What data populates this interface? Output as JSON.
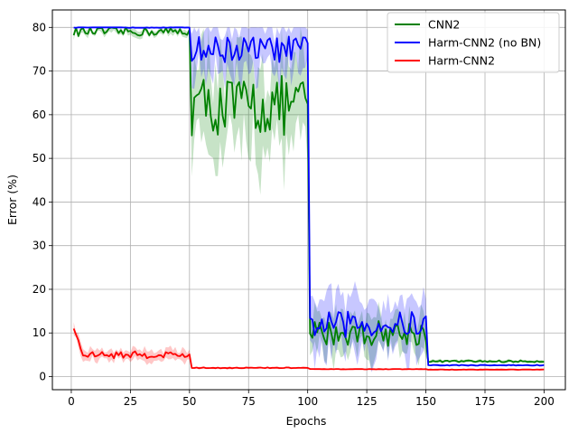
{
  "chart_data": {
    "type": "line",
    "title": "",
    "xlabel": "Epochs",
    "ylabel": "Error (%)",
    "xlim": [
      -8,
      209
    ],
    "ylim": [
      -3,
      84
    ],
    "xticks": [
      0,
      25,
      50,
      75,
      100,
      125,
      150,
      175,
      200
    ],
    "yticks": [
      0,
      10,
      20,
      30,
      40,
      50,
      60,
      70,
      80
    ],
    "grid": true,
    "legend_position": "top-right",
    "series": [
      {
        "name": "CNN2",
        "color": "#008000",
        "segments": [
          {
            "x_start": 1,
            "x_end": 50,
            "mean": 79,
            "noise": 1.0,
            "band": 0.8
          },
          {
            "x_start": 51,
            "x_end": 100,
            "mean": 62,
            "noise": 7,
            "band": 10
          },
          {
            "x_start": 101,
            "x_end": 150,
            "mean": 10,
            "noise": 3,
            "band": 4
          },
          {
            "x_start": 151,
            "x_end": 200,
            "mean": 3.5,
            "noise": 0.2,
            "band": 0.3
          }
        ]
      },
      {
        "name": "Harm-CNN2 (no BN)",
        "color": "#0000ff",
        "segments": [
          {
            "x_start": 1,
            "x_end": 50,
            "mean": 80,
            "noise": 0.1,
            "band": 0.2
          },
          {
            "x_start": 51,
            "x_end": 100,
            "mean": 75,
            "noise": 3,
            "band": 5
          },
          {
            "x_start": 101,
            "x_end": 150,
            "mean": 12,
            "noise": 3,
            "band": 6
          },
          {
            "x_start": 151,
            "x_end": 200,
            "mean": 2.6,
            "noise": 0.1,
            "band": 0.2
          }
        ]
      },
      {
        "name": "Harm-CNN2",
        "color": "#ff0000",
        "segments": [
          {
            "x_start": 1,
            "x_end": 50,
            "mean": 5,
            "noise": 0.8,
            "band": 1.2,
            "start_value": 11
          },
          {
            "x_start": 51,
            "x_end": 100,
            "mean": 2.0,
            "noise": 0.1,
            "band": 0.2
          },
          {
            "x_start": 101,
            "x_end": 150,
            "mean": 1.7,
            "noise": 0.05,
            "band": 0.1
          },
          {
            "x_start": 151,
            "x_end": 200,
            "mean": 1.6,
            "noise": 0.05,
            "band": 0.1
          }
        ]
      }
    ]
  }
}
